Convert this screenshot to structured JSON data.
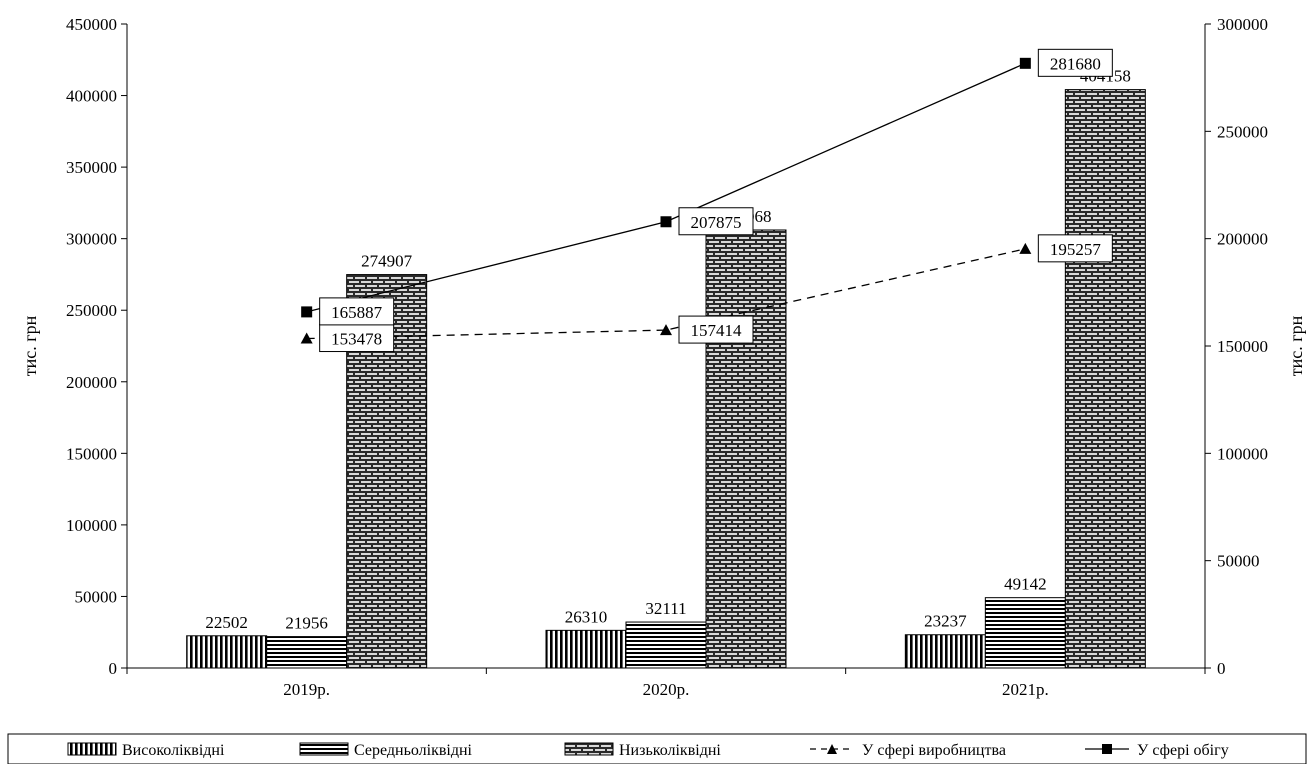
{
  "chart_data": {
    "type": "bar",
    "categories": [
      "2019р.",
      "2020р.",
      "2021р."
    ],
    "left_axis": {
      "label": "тис. грн",
      "ylim": [
        0,
        450000
      ],
      "ticks": [
        "0",
        "50000",
        "100000",
        "150000",
        "200000",
        "250000",
        "300000",
        "350000",
        "400000",
        "450000"
      ]
    },
    "right_axis": {
      "label": "тис. грн",
      "ylim": [
        0,
        300000
      ],
      "ticks": [
        "0",
        "50000",
        "100000",
        "150000",
        "200000",
        "250000",
        "300000"
      ]
    },
    "series": [
      {
        "name": "Високоліквідні",
        "kind": "bar",
        "axis": "left",
        "pattern": "vertical",
        "values": [
          22502,
          26310,
          23237
        ],
        "labels": [
          "22502",
          "26310",
          "23237"
        ]
      },
      {
        "name": "Середньоліквідні",
        "kind": "bar",
        "axis": "left",
        "pattern": "horizontal",
        "values": [
          21956,
          32111,
          49142
        ],
        "labels": [
          "21956",
          "32111",
          "49142"
        ]
      },
      {
        "name": "Низьколіквідні",
        "kind": "bar",
        "axis": "left",
        "pattern": "brick",
        "values": [
          274907,
          306068,
          404158
        ],
        "labels": [
          "274907",
          "306068",
          "404158"
        ]
      },
      {
        "name": "У сфері виробництва",
        "kind": "line",
        "axis": "right",
        "marker": "triangle",
        "dash": true,
        "values": [
          153478,
          157414,
          195257
        ],
        "labels": [
          "153478",
          "157414",
          "195257"
        ]
      },
      {
        "name": "У сфері обігу",
        "kind": "line",
        "axis": "right",
        "marker": "square",
        "dash": false,
        "values": [
          165887,
          207875,
          281680
        ],
        "labels": [
          "165887",
          "207875",
          "281680"
        ]
      }
    ],
    "grid": false,
    "legend_position": "bottom"
  }
}
